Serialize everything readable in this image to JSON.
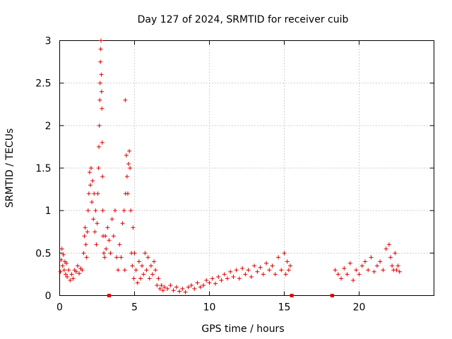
{
  "chart_data": {
    "type": "scatter",
    "title": "Day 127 of 2024, SRMTID for receiver cuib",
    "xlabel": "GPS time / hours",
    "ylabel": "SRMTID / TECUs",
    "xlim": [
      0,
      25
    ],
    "ylim": [
      0,
      3
    ],
    "xticks": [
      0,
      5,
      10,
      15,
      20
    ],
    "xtick_labels": [
      "0",
      "5",
      "10",
      "15",
      "20"
    ],
    "yticks": [
      0,
      0.5,
      1,
      1.5,
      2,
      2.5,
      3
    ],
    "ytick_labels": [
      "0",
      "0.5",
      "1",
      "1.5",
      "2",
      "2.5",
      "3"
    ],
    "grid": true,
    "marker": "plus",
    "color": "#e00000",
    "series": [
      {
        "name": "SRMTID",
        "points": [
          [
            0.05,
            0.28
          ],
          [
            0.1,
            0.42
          ],
          [
            0.15,
            0.55
          ],
          [
            0.2,
            0.35
          ],
          [
            0.25,
            0.48
          ],
          [
            0.3,
            0.3
          ],
          [
            0.35,
            0.4
          ],
          [
            0.4,
            0.25
          ],
          [
            0.45,
            0.38
          ],
          [
            0.5,
            0.22
          ],
          [
            0.6,
            0.3
          ],
          [
            0.7,
            0.18
          ],
          [
            0.8,
            0.25
          ],
          [
            0.9,
            0.2
          ],
          [
            1.0,
            0.3
          ],
          [
            1.1,
            0.28
          ],
          [
            1.2,
            0.35
          ],
          [
            1.3,
            0.26
          ],
          [
            1.4,
            0.32
          ],
          [
            1.5,
            0.3
          ],
          [
            1.6,
            0.5
          ],
          [
            1.65,
            0.7
          ],
          [
            1.7,
            0.8
          ],
          [
            1.75,
            0.6
          ],
          [
            1.8,
            0.45
          ],
          [
            1.85,
            0.75
          ],
          [
            1.9,
            1.0
          ],
          [
            1.95,
            1.2
          ],
          [
            2.0,
            1.45
          ],
          [
            2.05,
            1.3
          ],
          [
            2.1,
            1.5
          ],
          [
            2.15,
            1.1
          ],
          [
            2.2,
            1.35
          ],
          [
            2.25,
            0.9
          ],
          [
            2.3,
            1.2
          ],
          [
            2.35,
            0.75
          ],
          [
            2.4,
            1.0
          ],
          [
            2.45,
            0.6
          ],
          [
            2.5,
            0.85
          ],
          [
            2.55,
            1.2
          ],
          [
            2.6,
            1.5
          ],
          [
            2.62,
            1.75
          ],
          [
            2.65,
            2.0
          ],
          [
            2.68,
            2.3
          ],
          [
            2.7,
            2.5
          ],
          [
            2.72,
            2.75
          ],
          [
            2.74,
            2.9
          ],
          [
            2.76,
            3.0
          ],
          [
            2.78,
            2.6
          ],
          [
            2.8,
            2.4
          ],
          [
            2.82,
            2.2
          ],
          [
            2.84,
            1.8
          ],
          [
            2.86,
            1.4
          ],
          [
            2.88,
            1.0
          ],
          [
            2.9,
            0.7
          ],
          [
            2.95,
            0.5
          ],
          [
            3.0,
            0.45
          ],
          [
            3.05,
            0.7
          ],
          [
            3.1,
            0.55
          ],
          [
            3.2,
            0.8
          ],
          [
            3.3,
            0.65
          ],
          [
            3.4,
            0.5
          ],
          [
            3.5,
            0.9
          ],
          [
            3.6,
            0.7
          ],
          [
            3.7,
            1.0
          ],
          [
            3.8,
            0.45
          ],
          [
            3.9,
            0.3
          ],
          [
            4.0,
            0.6
          ],
          [
            4.1,
            0.45
          ],
          [
            4.2,
            0.85
          ],
          [
            4.3,
            1.0
          ],
          [
            4.35,
            0.3
          ],
          [
            4.38,
            2.3
          ],
          [
            4.4,
            1.2
          ],
          [
            4.45,
            1.65
          ],
          [
            4.5,
            1.4
          ],
          [
            4.55,
            1.2
          ],
          [
            4.6,
            1.55
          ],
          [
            4.65,
            1.7
          ],
          [
            4.7,
            1.5
          ],
          [
            4.75,
            1.0
          ],
          [
            4.8,
            0.5
          ],
          [
            4.85,
            0.35
          ],
          [
            4.9,
            0.8
          ],
          [
            4.95,
            0.2
          ],
          [
            5.0,
            0.5
          ],
          [
            5.1,
            0.3
          ],
          [
            5.2,
            0.15
          ],
          [
            5.3,
            0.4
          ],
          [
            5.4,
            0.2
          ],
          [
            5.5,
            0.35
          ],
          [
            5.6,
            0.25
          ],
          [
            5.7,
            0.5
          ],
          [
            5.8,
            0.3
          ],
          [
            5.9,
            0.45
          ],
          [
            6.0,
            0.2
          ],
          [
            6.1,
            0.35
          ],
          [
            6.2,
            0.25
          ],
          [
            6.3,
            0.4
          ],
          [
            6.4,
            0.3
          ],
          [
            6.5,
            0.12
          ],
          [
            6.6,
            0.2
          ],
          [
            6.7,
            0.08
          ],
          [
            6.8,
            0.12
          ],
          [
            6.9,
            0.06
          ],
          [
            7.0,
            0.1
          ],
          [
            7.2,
            0.08
          ],
          [
            7.4,
            0.12
          ],
          [
            7.6,
            0.06
          ],
          [
            7.8,
            0.1
          ],
          [
            8.0,
            0.05
          ],
          [
            8.2,
            0.08
          ],
          [
            8.4,
            0.04
          ],
          [
            8.6,
            0.1
          ],
          [
            8.8,
            0.12
          ],
          [
            9.0,
            0.08
          ],
          [
            9.2,
            0.15
          ],
          [
            9.4,
            0.1
          ],
          [
            9.6,
            0.12
          ],
          [
            9.8,
            0.18
          ],
          [
            10.0,
            0.15
          ],
          [
            10.2,
            0.2
          ],
          [
            10.4,
            0.14
          ],
          [
            10.6,
            0.22
          ],
          [
            10.8,
            0.18
          ],
          [
            11.0,
            0.25
          ],
          [
            11.2,
            0.2
          ],
          [
            11.4,
            0.28
          ],
          [
            11.6,
            0.22
          ],
          [
            11.8,
            0.3
          ],
          [
            12.0,
            0.2
          ],
          [
            12.2,
            0.32
          ],
          [
            12.4,
            0.25
          ],
          [
            12.6,
            0.3
          ],
          [
            12.8,
            0.22
          ],
          [
            13.0,
            0.35
          ],
          [
            13.2,
            0.28
          ],
          [
            13.4,
            0.33
          ],
          [
            13.6,
            0.25
          ],
          [
            13.8,
            0.38
          ],
          [
            14.0,
            0.3
          ],
          [
            14.2,
            0.35
          ],
          [
            14.4,
            0.25
          ],
          [
            14.6,
            0.45
          ],
          [
            14.8,
            0.3
          ],
          [
            15.0,
            0.5
          ],
          [
            15.1,
            0.25
          ],
          [
            15.2,
            0.4
          ],
          [
            15.3,
            0.3
          ],
          [
            15.4,
            0.35
          ],
          [
            18.4,
            0.3
          ],
          [
            18.6,
            0.25
          ],
          [
            18.8,
            0.2
          ],
          [
            19.0,
            0.32
          ],
          [
            19.2,
            0.25
          ],
          [
            19.4,
            0.38
          ],
          [
            19.6,
            0.18
          ],
          [
            19.8,
            0.3
          ],
          [
            20.0,
            0.25
          ],
          [
            20.2,
            0.35
          ],
          [
            20.4,
            0.4
          ],
          [
            20.6,
            0.3
          ],
          [
            20.8,
            0.45
          ],
          [
            21.0,
            0.28
          ],
          [
            21.2,
            0.35
          ],
          [
            21.4,
            0.4
          ],
          [
            21.6,
            0.3
          ],
          [
            21.8,
            0.55
          ],
          [
            22.0,
            0.6
          ],
          [
            22.1,
            0.45
          ],
          [
            22.2,
            0.35
          ],
          [
            22.3,
            0.3
          ],
          [
            22.4,
            0.5
          ],
          [
            22.5,
            0.3
          ],
          [
            22.6,
            0.35
          ],
          [
            22.7,
            0.28
          ]
        ]
      }
    ],
    "gap_markers_x": [
      3.3,
      15.5,
      18.2
    ]
  }
}
